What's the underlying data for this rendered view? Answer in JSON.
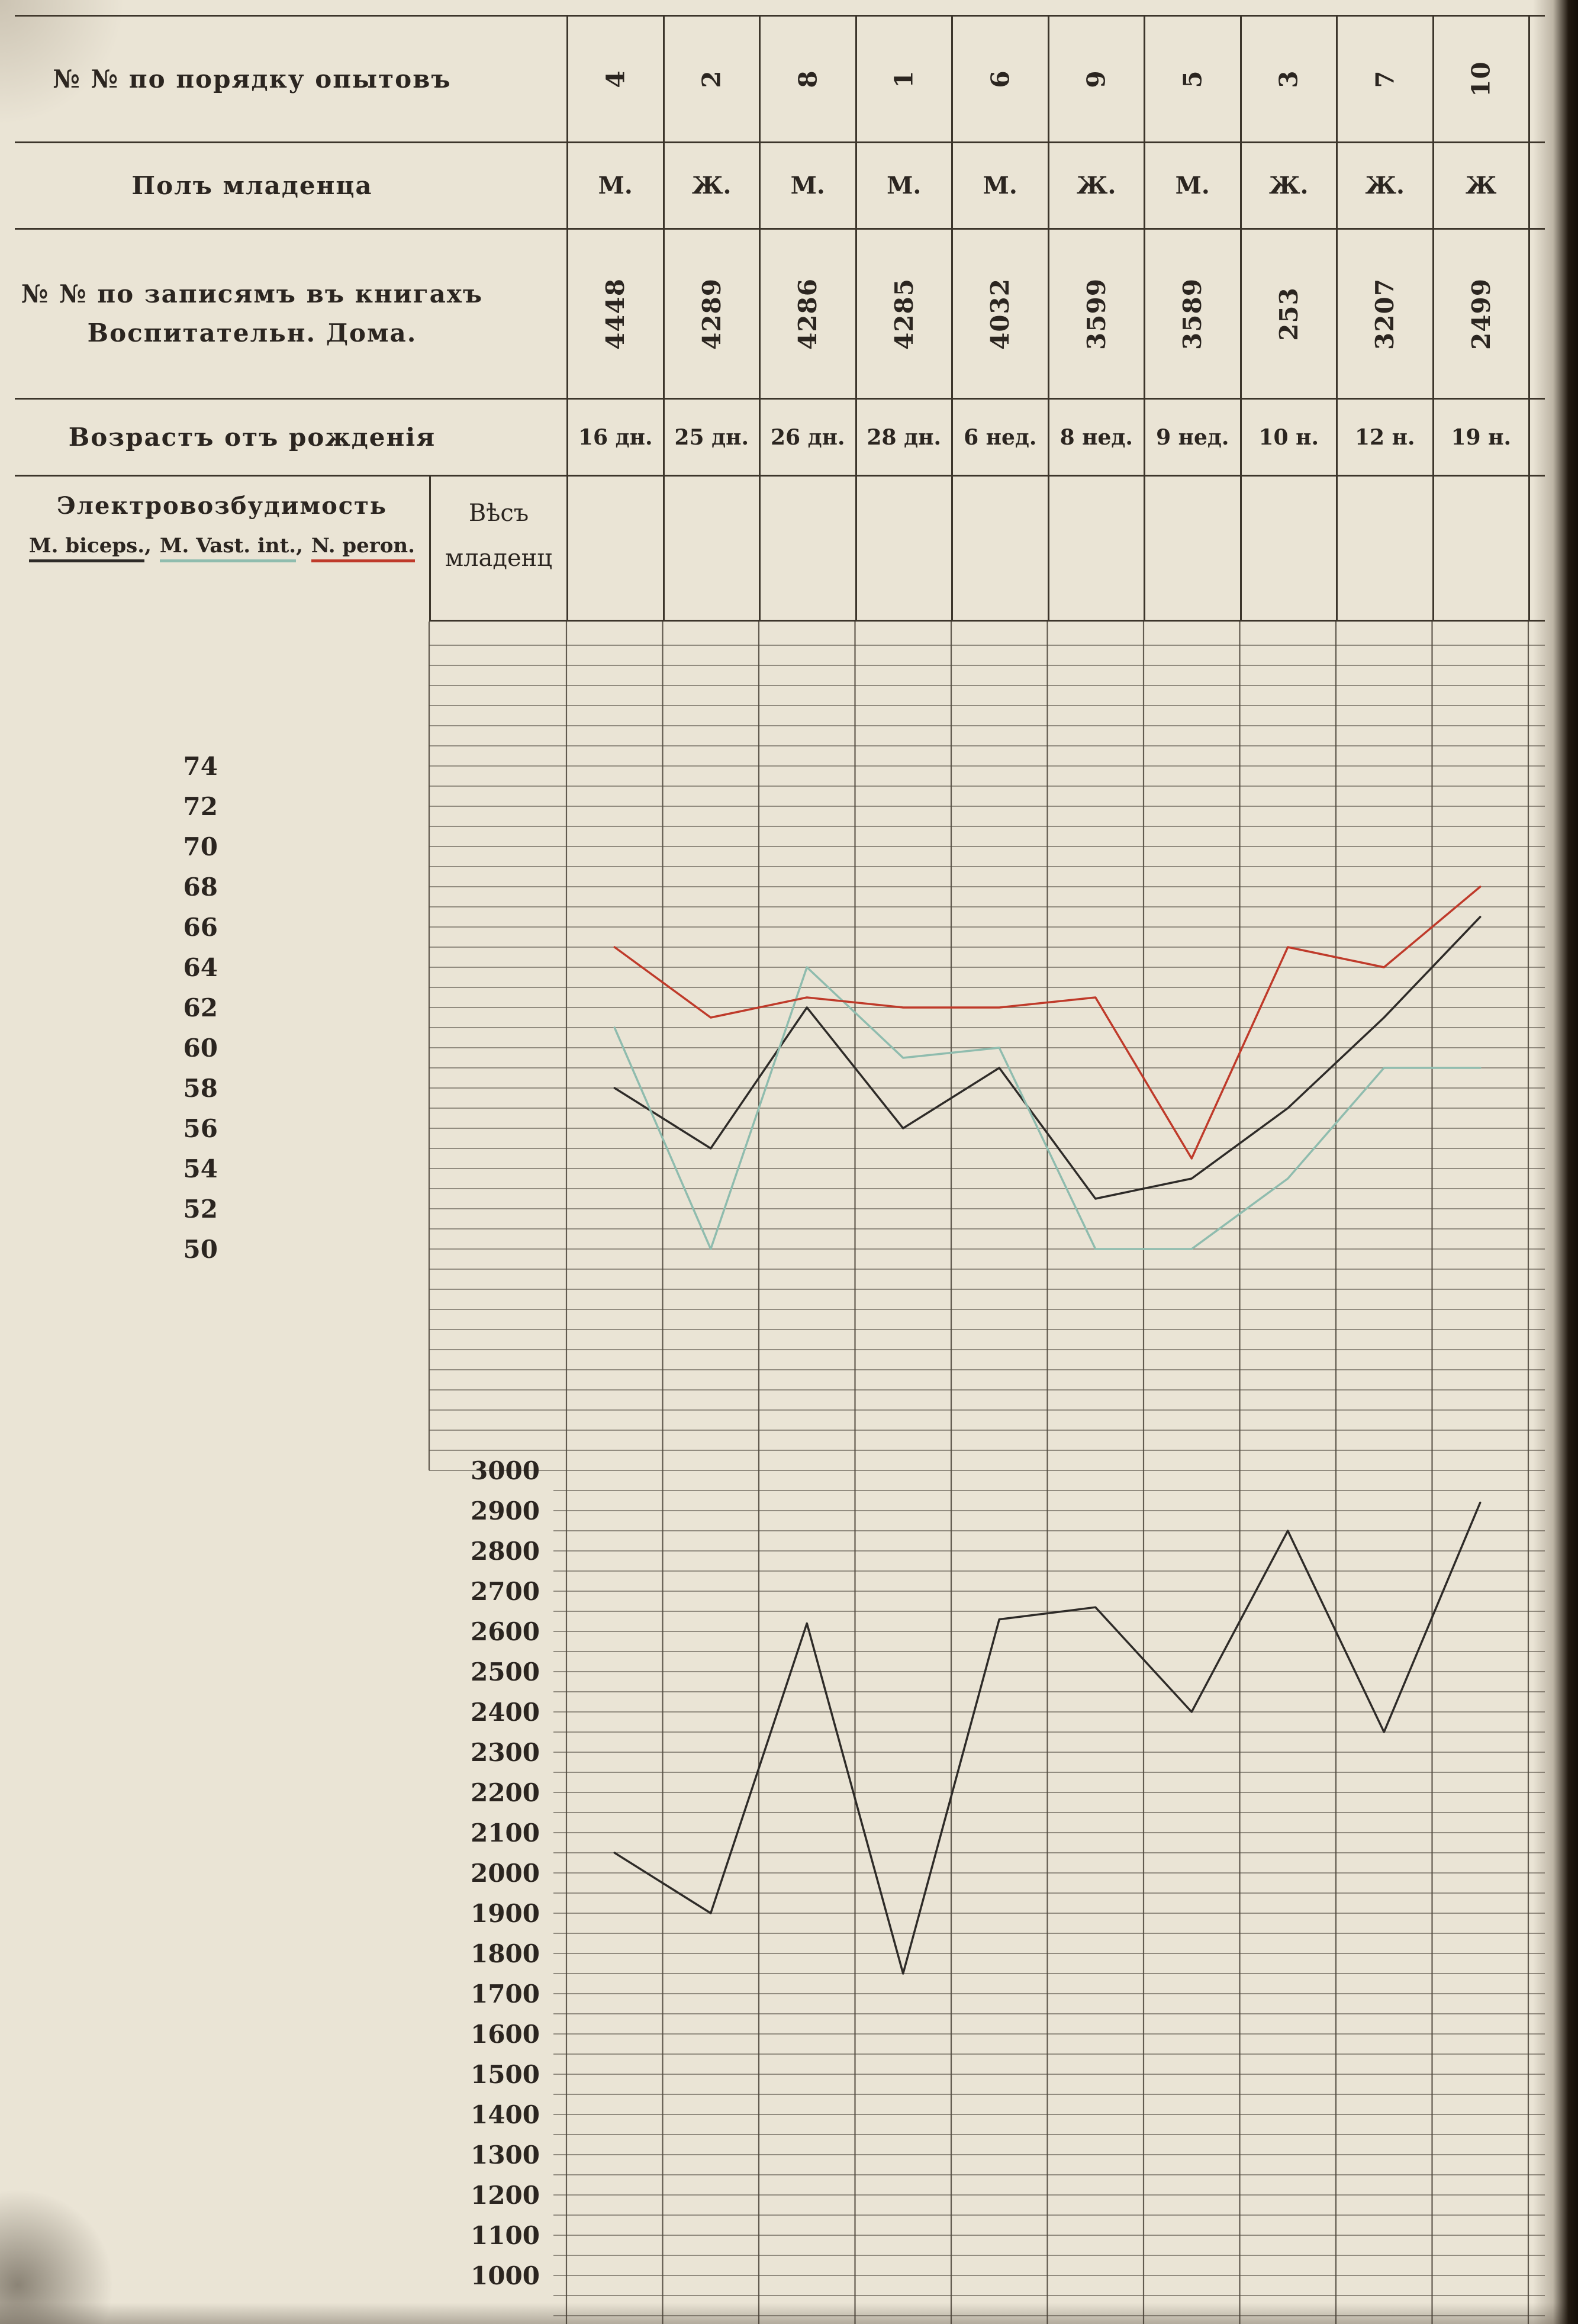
{
  "page": {
    "background": "#eae4d5",
    "line_color": "#3c352b",
    "text_color": "#2b2520"
  },
  "table": {
    "rows": {
      "experiment_order": {
        "label": "№ № по порядку опытовъ",
        "values": [
          "4",
          "2",
          "8",
          "1",
          "6",
          "9",
          "5",
          "3",
          "7",
          "10"
        ]
      },
      "sex": {
        "label": "Полъ младенца",
        "values": [
          "М.",
          "Ж.",
          "М.",
          "М.",
          "М.",
          "Ж.",
          "М.",
          "Ж.",
          "Ж.",
          "Ж"
        ]
      },
      "record_number": {
        "label_line1": "№ № по записямъ въ книгахъ",
        "label_line2": "Воспитательн. Дома.",
        "values": [
          "4448",
          "4289",
          "4286",
          "4285",
          "4032",
          "3599",
          "3589",
          "253",
          "3207",
          "2499"
        ]
      },
      "age": {
        "label": "Возрастъ отъ рожденія",
        "values": [
          "16 дн.",
          "25 дн.",
          "26 дн.",
          "28 дн.",
          "6 нед.",
          "8 нед.",
          "9 нед.",
          "10 н.",
          "12 н.",
          "19 н."
        ]
      }
    },
    "legend": {
      "title": "Электровозбудимость",
      "items": [
        {
          "label": "M. biceps.",
          "color": "#2e2b28"
        },
        {
          "label": "M. Vast. int.",
          "color": "#8fbcae"
        },
        {
          "label": "N. peron.",
          "color": "#bf3a2a"
        }
      ]
    },
    "weight_header": {
      "line1": "Вѣсъ",
      "line2": "младенц"
    }
  },
  "chart_data": [
    {
      "type": "line",
      "title": "Электровозбудимость",
      "x_categories": [
        "16 дн.",
        "25 дн.",
        "26 дн.",
        "28 дн.",
        "6 нед.",
        "8 нед.",
        "9 нед.",
        "10 н.",
        "12 н.",
        "19 н."
      ],
      "ylim": [
        50,
        74
      ],
      "yticks": [
        74,
        72,
        70,
        68,
        66,
        64,
        62,
        60,
        58,
        56,
        54,
        52,
        50
      ],
      "grid": true,
      "legend_position": "table-header-left",
      "series": [
        {
          "name": "M. biceps.",
          "color": "#2e2b28",
          "values": [
            58,
            55,
            62,
            56,
            59,
            52.5,
            53.5,
            57,
            61.5,
            66.5
          ]
        },
        {
          "name": "M. Vast. int.",
          "color": "#8fbcae",
          "values": [
            61,
            50,
            64,
            59.5,
            60,
            50,
            50,
            53.5,
            59,
            59
          ]
        },
        {
          "name": "N. peron.",
          "color": "#bf3a2a",
          "values": [
            65,
            61.5,
            62.5,
            62,
            62,
            62.5,
            54.5,
            65,
            64,
            68
          ]
        }
      ]
    },
    {
      "type": "line",
      "title": "Вѣсъ младенца",
      "x_categories": [
        "16 дн.",
        "25 дн.",
        "26 дн.",
        "28 дн.",
        "6 нед.",
        "8 нед.",
        "9 нед.",
        "10 н.",
        "12 н.",
        "19 н."
      ],
      "ylim": [
        1000,
        3000
      ],
      "yticks": [
        3000,
        2900,
        2800,
        2700,
        2600,
        2500,
        2400,
        2300,
        2200,
        2100,
        2000,
        1900,
        1800,
        1700,
        1600,
        1500,
        1400,
        1300,
        1200,
        1100,
        1000
      ],
      "grid": true,
      "series": [
        {
          "name": "Вѣсъ младенца",
          "color": "#2e2b28",
          "values": [
            2050,
            1900,
            2620,
            1750,
            2630,
            2660,
            2400,
            2850,
            2350,
            2920
          ]
        }
      ]
    }
  ]
}
